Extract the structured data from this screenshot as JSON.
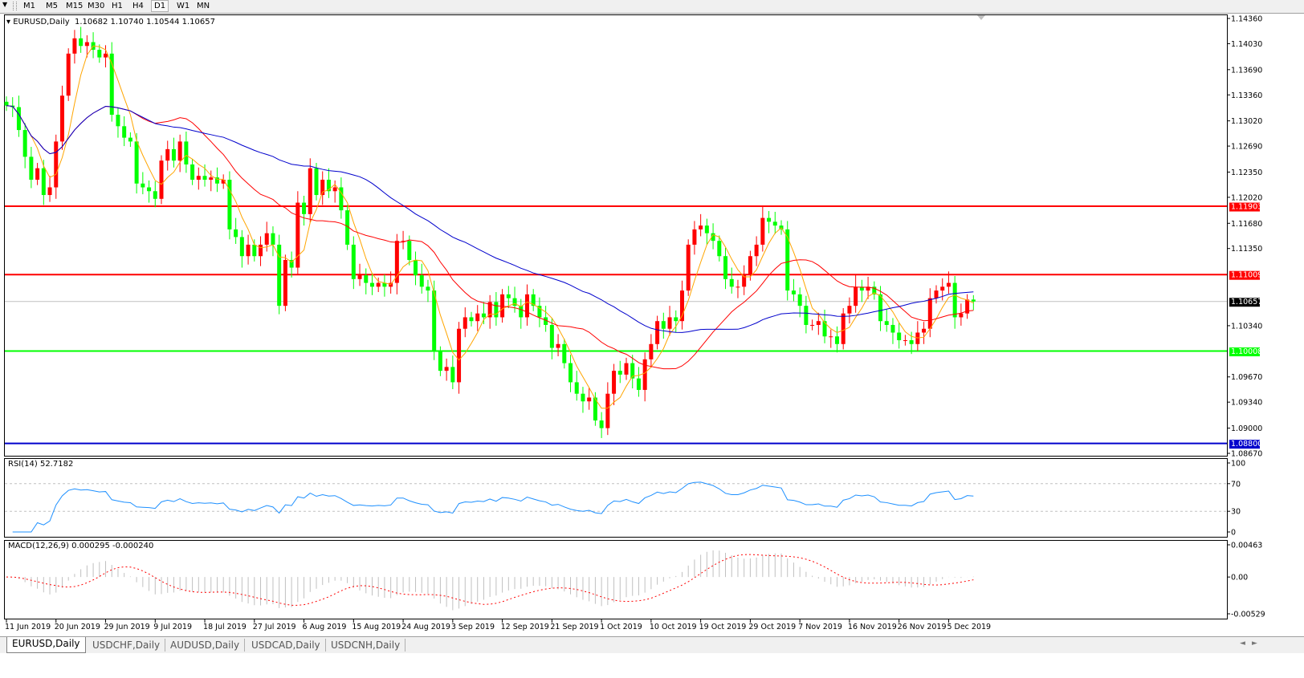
{
  "toolbar": {
    "timeframes": [
      "M1",
      "M5",
      "M15",
      "M30",
      "H1",
      "H4",
      "D1",
      "W1",
      "MN"
    ],
    "active": "D1"
  },
  "info": {
    "symbol": "EURUSD,Daily",
    "open": "1.10682",
    "high": "1.10740",
    "low": "1.10544",
    "close": "1.10657"
  },
  "rsi_label": "RSI(14) 52.7182",
  "macd_label": "MACD(12,26,9) 0.000295 -0.000240",
  "tabs": [
    "EURUSD,Daily",
    "USDCHF,Daily",
    "AUDUSD,Daily",
    "USDCAD,Daily",
    "USDCNH,Daily"
  ],
  "active_tab": "EURUSD,Daily",
  "colors": {
    "bull_candle": "#ff0000",
    "bear_candle": "#00ff00",
    "ma_fast": "#ffa500",
    "ma_mid": "#ff0000",
    "ma_slow": "#0000cc",
    "rsi_line": "#1e90ff",
    "macd_hist": "#c0c0c0",
    "macd_signal": "#ff0000"
  },
  "chart_data": [
    {
      "type": "candlestick",
      "symbol": "EURUSD",
      "timeframe": "Daily",
      "ylim": [
        1.0867,
        1.1436
      ],
      "price_ticks": [
        "1.14360",
        "1.14030",
        "1.13690",
        "1.13360",
        "1.13020",
        "1.12690",
        "1.12350",
        "1.12020",
        "1.11680",
        "1.11350",
        "1.10340",
        "1.09670",
        "1.09340",
        "1.09000",
        "1.08670"
      ],
      "x_tick_labels": [
        "11 Jun 2019",
        "20 Jun 2019",
        "29 Jun 2019",
        "9 Jul 2019",
        "18 Jul 2019",
        "27 Jul 2019",
        "6 Aug 2019",
        "15 Aug 2019",
        "24 Aug 2019",
        "3 Sep 2019",
        "12 Sep 2019",
        "21 Sep 2019",
        "1 Oct 2019",
        "10 Oct 2019",
        "19 Oct 2019",
        "29 Oct 2019",
        "7 Nov 2019",
        "16 Nov 2019",
        "26 Nov 2019",
        "5 Dec 2019"
      ],
      "horizontal_levels": [
        {
          "value": 1.11903,
          "label": "1.11903",
          "color": "#ff0000"
        },
        {
          "value": 1.11009,
          "label": "1.11009",
          "color": "#ff0000"
        },
        {
          "value": 1.10008,
          "label": "1.10008",
          "color": "#00ff00"
        },
        {
          "value": 1.088,
          "label": "1.08800",
          "color": "#0000cc"
        }
      ],
      "current_price": {
        "value": 1.10657,
        "label": "1.10657"
      },
      "closes": [
        1.1322,
        1.132,
        1.129,
        1.1255,
        1.1225,
        1.124,
        1.1205,
        1.1215,
        1.1275,
        1.1335,
        1.139,
        1.141,
        1.14,
        1.1405,
        1.1395,
        1.1385,
        1.139,
        1.131,
        1.1295,
        1.128,
        1.1275,
        1.122,
        1.1215,
        1.121,
        1.12,
        1.125,
        1.1265,
        1.125,
        1.1275,
        1.1245,
        1.1225,
        1.123,
        1.1225,
        1.1228,
        1.122,
        1.1225,
        1.116,
        1.115,
        1.1125,
        1.114,
        1.1125,
        1.114,
        1.1155,
        1.114,
        1.106,
        1.112,
        1.111,
        1.1195,
        1.118,
        1.124,
        1.1205,
        1.1225,
        1.121,
        1.1215,
        1.1185,
        1.114,
        1.1095,
        1.11,
        1.109,
        1.1085,
        1.109,
        1.1085,
        1.109,
        1.1145,
        1.1145,
        1.112,
        1.11,
        1.1085,
        1.108,
        1.1,
        1.0975,
        1.098,
        1.096,
        1.103,
        1.1045,
        1.104,
        1.105,
        1.1045,
        1.1065,
        1.1045,
        1.1075,
        1.107,
        1.106,
        1.1045,
        1.1075,
        1.106,
        1.1045,
        1.1035,
        1.1005,
        1.101,
        1.0985,
        1.096,
        1.0945,
        1.0935,
        1.094,
        1.091,
        1.09,
        1.0945,
        1.0975,
        1.097,
        1.0985,
        1.0965,
        1.095,
        1.099,
        1.101,
        1.104,
        1.103,
        1.1045,
        1.104,
        1.108,
        1.114,
        1.116,
        1.1165,
        1.1155,
        1.1145,
        1.1125,
        1.1095,
        1.1085,
        1.1085,
        1.11,
        1.1125,
        1.114,
        1.1175,
        1.117,
        1.1165,
        1.116,
        1.108,
        1.1075,
        1.106,
        1.1035,
        1.1035,
        1.104,
        1.102,
        1.102,
        1.101,
        1.105,
        1.106,
        1.1085,
        1.108,
        1.1085,
        1.1075,
        1.104,
        1.1035,
        1.1025,
        1.1015,
        1.1015,
        1.101,
        1.1025,
        1.103,
        1.107,
        1.108,
        1.1085,
        1.109,
        1.1045,
        1.105,
        1.10682,
        1.10657
      ]
    },
    {
      "type": "line",
      "indicator": "RSI(14)",
      "value_label": "52.7182",
      "ylim": [
        0,
        100
      ],
      "ticks": [
        "100",
        "70",
        "30",
        "0"
      ],
      "levels": [
        70,
        30
      ]
    },
    {
      "type": "bar",
      "indicator": "MACD(12,26,9)",
      "main_value": "0.000295",
      "signal_value": "-0.000240",
      "ylim": [
        -0.00529,
        0.00463
      ],
      "ticks": [
        "0.00463",
        "0.00",
        "-0.00529"
      ]
    }
  ]
}
